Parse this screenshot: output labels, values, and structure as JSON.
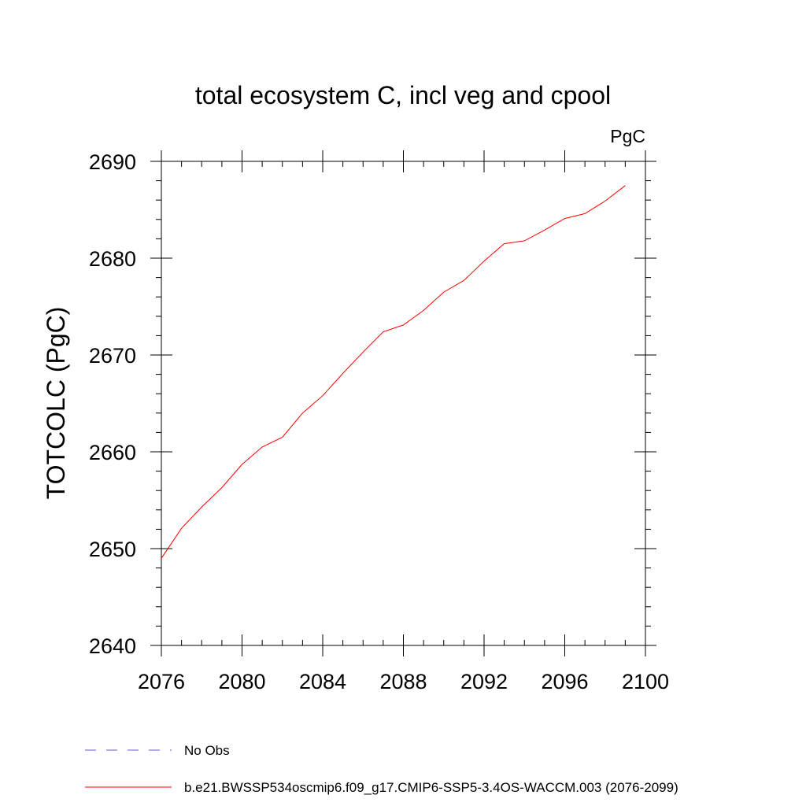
{
  "chart_data": {
    "type": "line",
    "title": "total ecosystem C, incl veg and cpool",
    "units_label": "PgC",
    "ylabel": "TOTCOLC  (PgC)",
    "xlabel": "",
    "xlim": [
      2076,
      2100
    ],
    "ylim": [
      2640,
      2690
    ],
    "x_ticks": [
      2076,
      2080,
      2084,
      2088,
      2092,
      2096,
      2100
    ],
    "y_ticks": [
      2640,
      2650,
      2660,
      2670,
      2680,
      2690
    ],
    "x_minor_step": 1,
    "y_minor_step": 2,
    "grid": false,
    "legend_position": "bottom",
    "series": [
      {
        "name": "b.e21.BWSSP534oscmip6.f09_g17.CMIP6-SSP5-3.4OS-WACCM.003 (2076-2099)",
        "color": "#ff0000",
        "style": "solid",
        "x": [
          2076,
          2077,
          2078,
          2079,
          2080,
          2081,
          2082,
          2083,
          2084,
          2085,
          2086,
          2087,
          2088,
          2089,
          2090,
          2091,
          2092,
          2093,
          2094,
          2095,
          2096,
          2097,
          2098,
          2099
        ],
        "values": [
          2649.0,
          2652.1,
          2654.3,
          2656.3,
          2658.7,
          2660.5,
          2661.5,
          2664.0,
          2665.8,
          2668.1,
          2670.3,
          2672.4,
          2673.1,
          2674.6,
          2676.5,
          2677.7,
          2679.7,
          2681.5,
          2681.8,
          2682.9,
          2684.1,
          2684.6,
          2685.9,
          2687.5
        ]
      }
    ],
    "legend": [
      {
        "label": "No Obs",
        "color": "#6a5acd",
        "style": "dashed"
      },
      {
        "label": "b.e21.BWSSP534oscmip6.f09_g17.CMIP6-SSP5-3.4OS-WACCM.003 (2076-2099)",
        "color": "#ff0000",
        "style": "solid"
      }
    ]
  }
}
